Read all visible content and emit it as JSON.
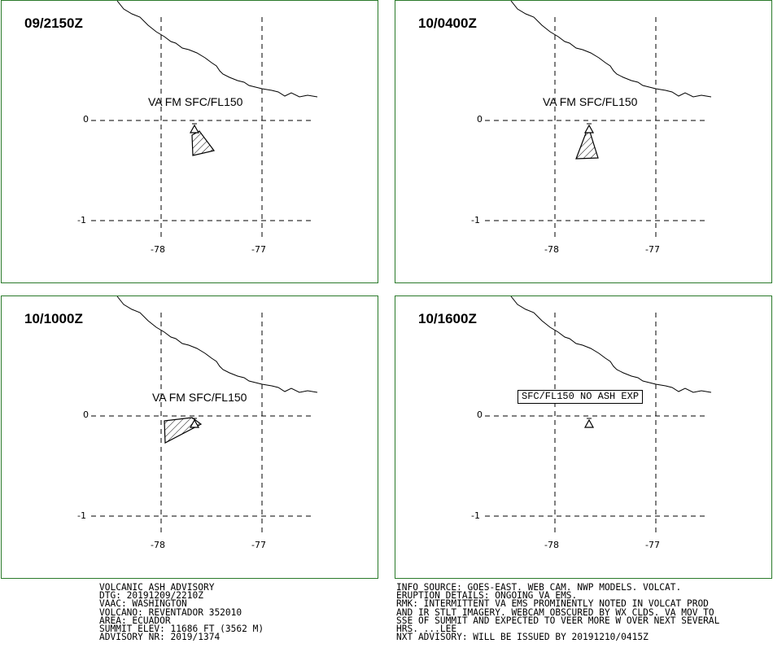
{
  "panels": [
    {
      "time": "09/2150Z",
      "label": "VA FM SFC/FL150",
      "label_style": "plain",
      "ash": "a"
    },
    {
      "time": "10/0400Z",
      "label": "VA FM SFC/FL150",
      "label_style": "plain",
      "ash": "b"
    },
    {
      "time": "10/1000Z",
      "label": "VA FM SFC/FL150",
      "label_style": "plain",
      "ash": "c"
    },
    {
      "time": "10/1600Z",
      "label": "SFC/FL150 NO ASH EXP",
      "label_style": "boxed",
      "ash": "none"
    }
  ],
  "axes": {
    "lat_labels": [
      "0",
      "-1"
    ],
    "lon_labels": [
      "-78",
      "-77"
    ]
  },
  "advisory_left": [
    "VOLCANIC ASH ADVISORY",
    "DTG: 20191209/2210Z",
    "VAAC: WASHINGTON",
    "VOLCANO: REVENTADOR 352010",
    "AREA: ECUADOR",
    "SUMMIT ELEV: 11686 FT (3562 M)",
    "ADVISORY NR: 2019/1374"
  ],
  "advisory_right": [
    "INFO SOURCE: GOES-EAST. WEB CAM. NWP MODELS. VOLCAT.",
    "ERUPTION DETAILS: ONGOING VA EMS.",
    "RMK: INTERMITTENT VA EMS PROMINENTLY NOTED IN VOLCAT PROD",
    "AND IR STLT IMAGERY. WEBCAM OBSCURED BY WX CLDS. VA MOV TO",
    "SSE OF SUMMIT AND EXPECTED TO VEER MORE W OVER NEXT SEVERAL",
    "HRS. ...LEE",
    "NXT ADVISORY: WILL BE ISSUED BY 20191210/0415Z"
  ],
  "colors": {
    "frame": "#2a7a2a",
    "lines": "#000000",
    "background": "#ffffff"
  },
  "icons": {
    "volcano": "volcano-triangle-icon"
  }
}
